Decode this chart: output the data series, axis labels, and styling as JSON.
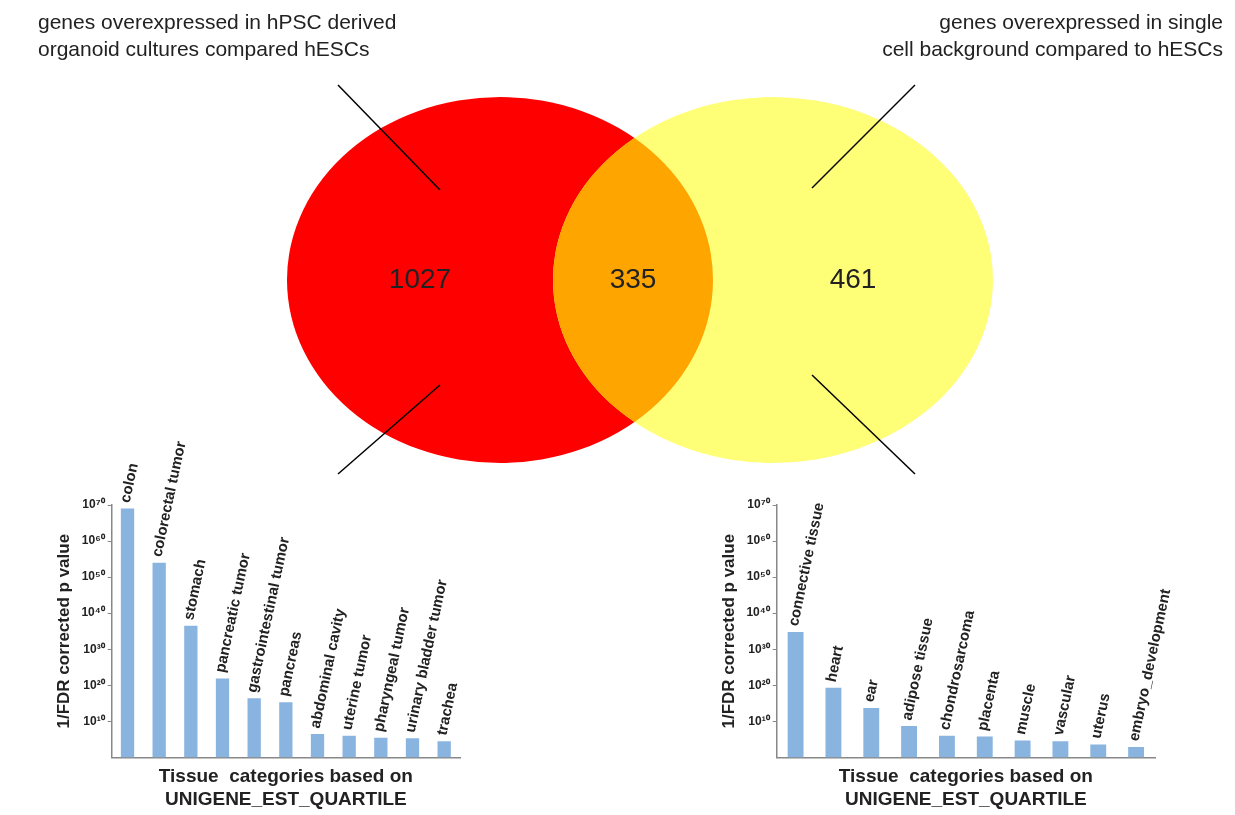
{
  "chart_data": [
    {
      "type": "other",
      "categories": [
        null,
        null,
        null
      ],
      "values": [
        1027,
        335,
        461
      ],
      "colors": [
        "#ff0000",
        "#ffa500",
        "#ffff77"
      ],
      "data_labels": true,
      "annotations": [
        "genes overexpressed in hPSC derived\norganoid cultures compared hESCs",
        "genes overexpressed in single\ncell background compared to hESCs"
      ]
    },
    {
      "type": "bar",
      "categories": [
        "colon",
        "colorectal tumor",
        "stomach",
        "pancreatic tumor",
        "gastrointestinal tumor",
        "pancreas",
        "abdominal cavity",
        "uterine tumor",
        "pharyngeal tumor",
        "urinary bladder tumor",
        "trachea"
      ],
      "values": [
        1e+69,
        1e+54,
        3e+36,
        8e+21,
        2.5e+16,
        2000000000000000.0,
        3000000.0,
        1000000.0,
        300000.0,
        200000.0,
        30000.0
      ],
      "color": "#8ab4e0",
      "xlabel": "Tissue  categories based on\nUNIGENE_EST_QUARTILE",
      "ylabel": "1/FDR corrected p value",
      "log": true,
      "ylim": [
        1,
        1e+70
      ],
      "yticks": [
        {
          "value": 10000000000.0,
          "label": "10¹⁰"
        },
        {
          "value": 1e+20,
          "label": "10²⁰"
        },
        {
          "value": 1e+30,
          "label": "10³⁰"
        },
        {
          "value": 1e+40,
          "label": "10⁴⁰"
        },
        {
          "value": 1e+50,
          "label": "10⁵⁰"
        },
        {
          "value": 1e+60,
          "label": "10⁶⁰"
        },
        {
          "value": 1e+70,
          "label": "10⁷⁰"
        }
      ],
      "grid": false,
      "legend": false
    },
    {
      "type": "bar",
      "categories": [
        "connective tissue",
        "heart",
        "ear",
        "adipose tissue",
        "chondrosarcoma",
        "placenta",
        "muscle",
        "vascular",
        "uterus",
        "embryo_development"
      ],
      "values": [
        6e+34,
        2e+19,
        50000000000000.0,
        500000000.0,
        1000000.0,
        600000.0,
        50000.0,
        30000.0,
        4000.0,
        800.0
      ],
      "color": "#8ab4e0",
      "xlabel": "Tissue  categories based on\nUNIGENE_EST_QUARTILE",
      "ylabel": "1/FDR corrected p value",
      "log": true,
      "ylim": [
        1,
        1e+70
      ],
      "yticks": [
        {
          "value": 10000000000.0,
          "label": "10¹⁰"
        },
        {
          "value": 1e+20,
          "label": "10²⁰"
        },
        {
          "value": 1e+30,
          "label": "10³⁰"
        },
        {
          "value": 1e+40,
          "label": "10⁴⁰"
        },
        {
          "value": 1e+50,
          "label": "10⁵⁰"
        },
        {
          "value": 1e+60,
          "label": "10⁶⁰"
        },
        {
          "value": 1e+70,
          "label": "10⁷⁰"
        }
      ],
      "grid": false,
      "legend": false
    }
  ]
}
